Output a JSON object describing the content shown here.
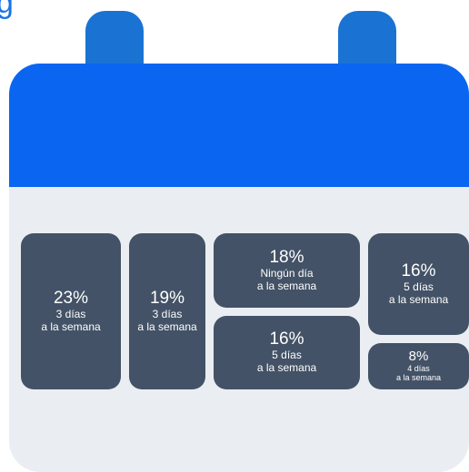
{
  "chart_data": {
    "type": "treemap",
    "title": "",
    "tiles": [
      {
        "percent": 23,
        "value_label": "23%",
        "label_line1": "3 días",
        "label_line2": "a la semana"
      },
      {
        "percent": 19,
        "value_label": "19%",
        "label_line1": "3 días",
        "label_line2": "a la semana"
      },
      {
        "percent": 18,
        "value_label": "18%",
        "label_line1": "Ningún día",
        "label_line2": "a la semana"
      },
      {
        "percent": 16,
        "value_label": "16%",
        "label_line1": "5 días",
        "label_line2": "a la semana"
      },
      {
        "percent": 16,
        "value_label": "16%",
        "label_line1": "5 días",
        "label_line2": "a la semana"
      },
      {
        "percent": 8,
        "value_label": "8%",
        "label_line1": "4 días",
        "label_line2": "a la semana"
      }
    ]
  },
  "colors": {
    "header": "#0a66f0",
    "rings": "#1a73d3",
    "calendar_body": "#eaeef2",
    "tile": "#435266",
    "tile_text": "#ffffff"
  }
}
